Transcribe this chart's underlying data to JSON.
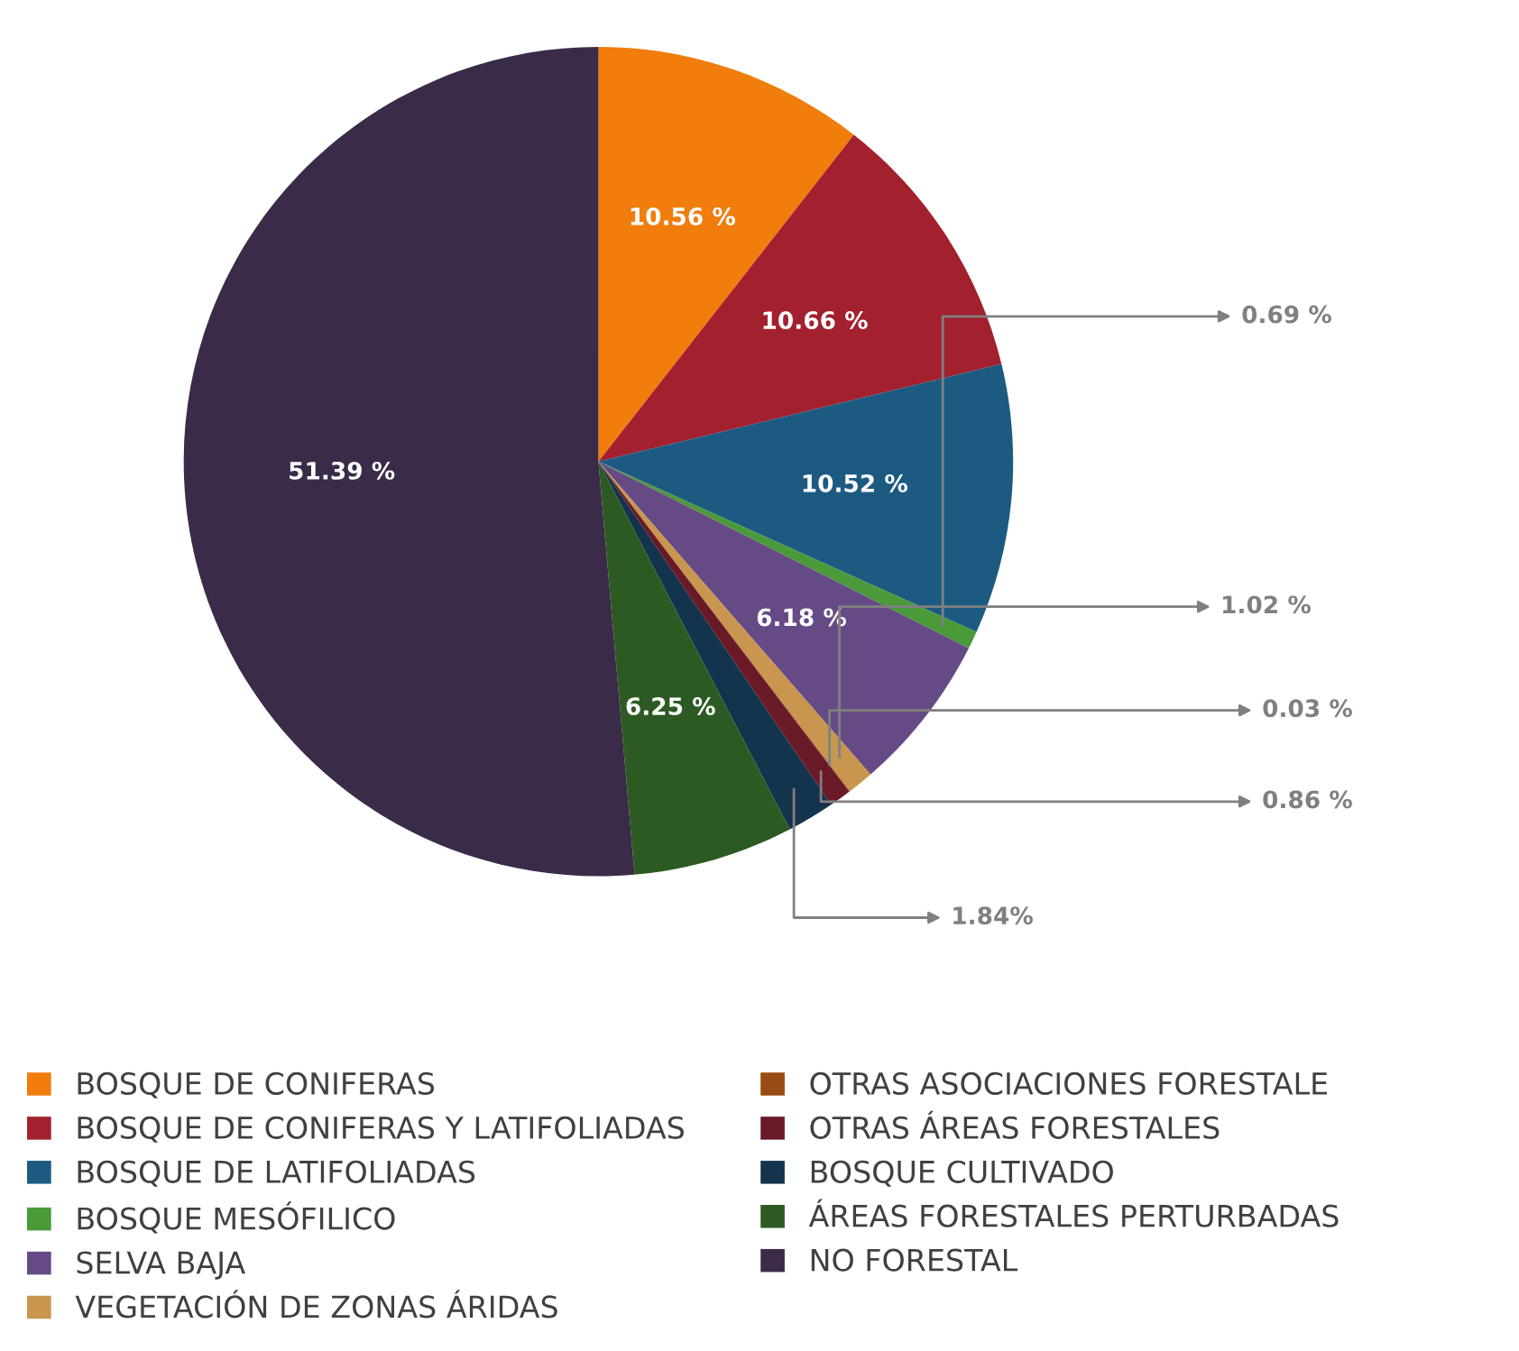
{
  "chart_data": {
    "type": "pie",
    "categories": [
      "BOSQUE DE CONIFERAS",
      "BOSQUE DE CONIFERAS Y LATIFOLIADAS",
      "BOSQUE DE LATIFOLIADAS",
      "BOSQUE MESÓFILICO",
      "SELVA BAJA",
      "VEGETACIÓN DE ZONAS ÁRIDAS",
      "OTRAS ASOCIACIONES FORESTALE",
      "OTRAS ÁREAS FORESTALES",
      "BOSQUE CULTIVADO",
      "ÁREAS FORESTALES PERTURBADAS",
      "NO FORESTAL"
    ],
    "values": [
      10.56,
      10.66,
      10.52,
      0.69,
      6.18,
      1.02,
      0.03,
      0.86,
      1.84,
      6.25,
      51.39
    ],
    "value_labels": [
      "10.56 %",
      "10.66 %",
      "10.52 %",
      "0.69 %",
      "6.18 %",
      "1.02 %",
      "0.03 %",
      "0.86 %",
      "1.84%",
      "6.25 %",
      "51.39 %"
    ],
    "colors": [
      "#f07d0c",
      "#a3202f",
      "#1d5a82",
      "#4a9a3a",
      "#664a86",
      "#c8964e",
      "#9a4a14",
      "#6a1a26",
      "#14334c",
      "#2d5a22",
      "#3a2b48"
    ],
    "legend": "bottom"
  }
}
